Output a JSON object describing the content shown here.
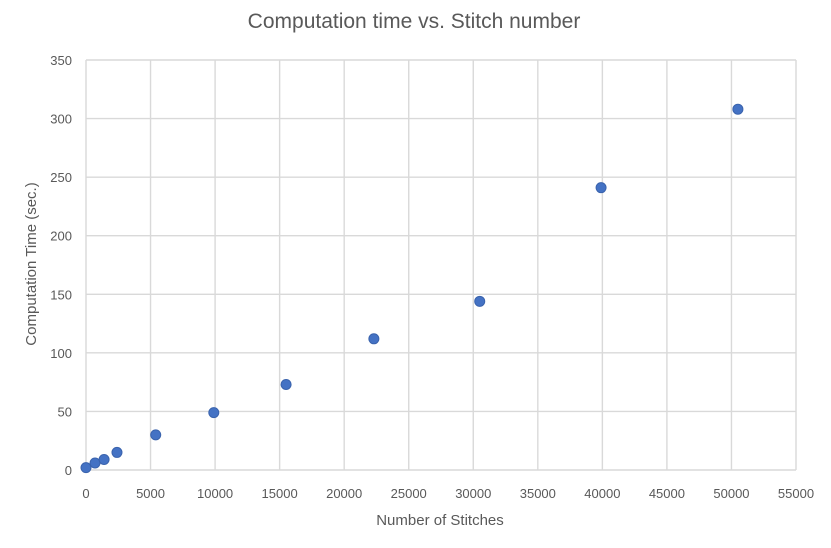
{
  "chart_data": {
    "type": "scatter",
    "title": "Computation time vs. Stitch number",
    "xlabel": "Number  of Stitches",
    "ylabel": "Computation  Time (sec.)",
    "xlim": [
      0,
      55000
    ],
    "ylim": [
      0,
      350
    ],
    "xticks": [
      "0",
      "5000",
      "10000",
      "15000",
      "20000",
      "25000",
      "30000",
      "35000",
      "40000",
      "45000",
      "50000",
      "55000"
    ],
    "yticks": [
      "0",
      "50",
      "100",
      "150",
      "200",
      "250",
      "300",
      "350"
    ],
    "grid": true,
    "legend": "none",
    "marker_color": "#4472c4",
    "points": [
      {
        "x": 0,
        "y": 2
      },
      {
        "x": 700,
        "y": 6
      },
      {
        "x": 1400,
        "y": 9
      },
      {
        "x": 2400,
        "y": 15
      },
      {
        "x": 5400,
        "y": 30
      },
      {
        "x": 9900,
        "y": 49
      },
      {
        "x": 15500,
        "y": 73
      },
      {
        "x": 22300,
        "y": 112
      },
      {
        "x": 30500,
        "y": 144
      },
      {
        "x": 39900,
        "y": 241
      },
      {
        "x": 50500,
        "y": 308
      }
    ]
  }
}
